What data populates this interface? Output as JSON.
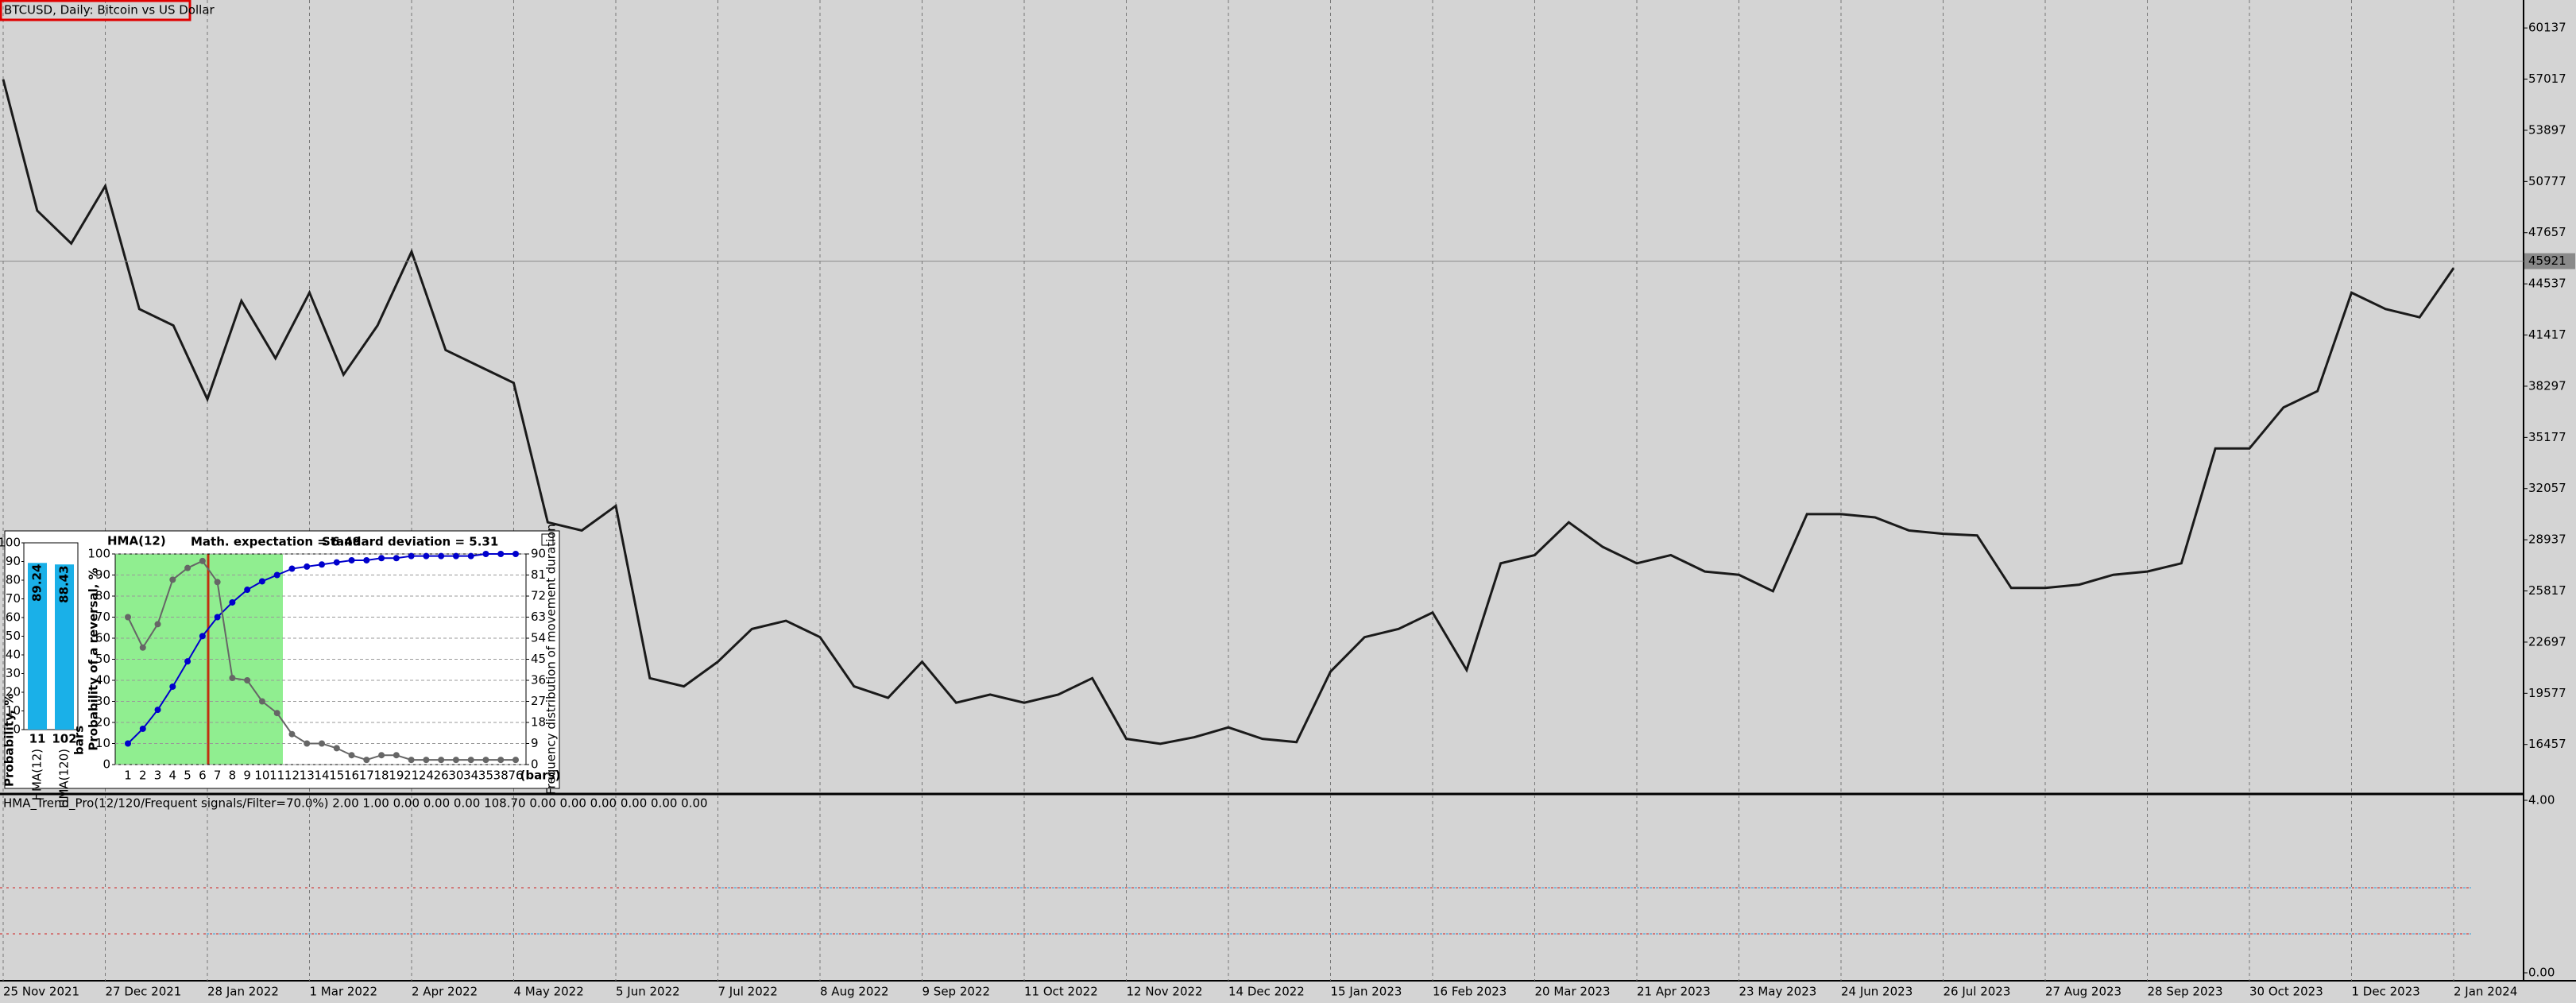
{
  "chart_data": [
    {
      "type": "line",
      "title": "BTCUSD, Daily:  Bitcoin vs US Dollar",
      "categories": [
        "25 Nov 2021",
        null,
        null,
        "27 Dec 2021",
        null,
        null,
        "28 Jan 2022",
        null,
        null,
        "1 Mar 2022",
        null,
        null,
        "2 Apr 2022",
        null,
        null,
        "4 May 2022",
        null,
        null,
        "5 Jun 2022",
        null,
        null,
        "7 Jul 2022",
        null,
        null,
        "8 Aug 2022",
        null,
        null,
        "9 Sep 2022",
        null,
        null,
        "11 Oct 2022",
        null,
        null,
        "12 Nov 2022",
        null,
        null,
        "14 Dec 2022",
        null,
        null,
        "15 Jan 2023",
        null,
        null,
        "16 Feb 2023",
        null,
        null,
        "20 Mar 2023",
        null,
        null,
        "21 Apr 2023",
        null,
        null,
        "23 May 2023",
        null,
        null,
        "24 Jun 2023",
        null,
        null,
        "26 Jul 2023",
        null,
        null,
        "27 Aug 2023",
        null,
        null,
        "28 Sep 2023",
        null,
        null,
        "30 Oct 2023",
        null,
        null,
        "1 Dec 2023",
        null,
        null,
        "2 Jan 2024"
      ],
      "values": [
        57000,
        49000,
        47000,
        50500,
        43000,
        42000,
        37500,
        43500,
        40000,
        44000,
        39000,
        42000,
        46500,
        40500,
        39500,
        38500,
        30000,
        29500,
        31000,
        20500,
        20000,
        21500,
        23500,
        24000,
        23000,
        20000,
        19300,
        21500,
        19000,
        19500,
        19000,
        19500,
        20500,
        16800,
        16500,
        16900,
        17500,
        16800,
        16600,
        20900,
        23000,
        23500,
        24500,
        21000,
        27500,
        28000,
        30000,
        28500,
        27500,
        28000,
        27000,
        26800,
        25800,
        30500,
        30500,
        30300,
        29500,
        29300,
        29200,
        26000,
        26000,
        26200,
        26800,
        27000,
        27500,
        34500,
        34500,
        37000,
        38000,
        44000,
        43000,
        42500,
        45500
      ],
      "color": "#1a1a1a",
      "last_price": 45921,
      "ylim": [
        13440,
        61840
      ],
      "yticks": [
        16457,
        19577,
        22697,
        25817,
        28937,
        32057,
        35177,
        38297,
        41417,
        44537,
        47657,
        50777,
        53897,
        57017,
        60137
      ],
      "grid": "vertical"
    },
    {
      "type": "line",
      "title": "HMA(12)",
      "subtitle": "Math. expectation = 6.49",
      "annotation": "Standard deviation = 5.31",
      "categories": [
        "1",
        "2",
        "3",
        "4",
        "5",
        "6",
        "7",
        "8",
        "9",
        "10",
        "11",
        "12",
        "13",
        "14",
        "15",
        "16",
        "17",
        "18",
        "19",
        "21",
        "24",
        "26",
        "30",
        "34",
        "35",
        "38",
        "76"
      ],
      "xlabel": "(bars)",
      "ylabel": "Probability of a reversal, %",
      "y2label": "Frequency distribution of movement duration",
      "series": [
        {
          "color": "#0000cc",
          "values": [
            10,
            17,
            26,
            37,
            49,
            61,
            70,
            77,
            83,
            87,
            90,
            93,
            94,
            95,
            96,
            97,
            97,
            98,
            98,
            99,
            99,
            99,
            99,
            99,
            100,
            100,
            100
          ]
        },
        {
          "color": "#666666",
          "axis": "y2",
          "values": [
            63,
            50,
            60,
            79,
            84,
            87,
            78,
            37,
            36,
            27,
            22,
            13,
            9,
            9,
            7,
            4,
            2,
            4,
            4,
            2,
            2,
            2,
            2,
            2,
            2,
            2,
            2
          ]
        }
      ],
      "ylim": [
        0,
        100
      ],
      "yticks": [
        0,
        10,
        20,
        30,
        40,
        50,
        60,
        70,
        80,
        90,
        100
      ],
      "y2lim": [
        0,
        90
      ],
      "y2ticks": [
        0,
        9,
        18,
        27,
        36,
        45,
        54,
        63,
        72,
        81,
        90
      ],
      "grid": "horizontal",
      "markers": true
    },
    {
      "type": "bar",
      "ylabel": "Probability, %",
      "xlabel": "bars",
      "categories": [
        "HMA(12)",
        "HMA(120)"
      ],
      "values": [
        89.24,
        88.43
      ],
      "counts": [
        11,
        102
      ],
      "color": "#1ab0e8",
      "ylim": [
        0,
        100
      ],
      "yticks": [
        0,
        10,
        20,
        30,
        40,
        50,
        60,
        70,
        80,
        90,
        100
      ]
    },
    {
      "type": "indicator",
      "title": "HMA_Trend_Pro(12/120/Frequent signals/Filter=70.0%) 2.00 1.00 0.00 0.00 0.00 108.70 0.00 0.00 0.00 0.00 0.00 0.00",
      "ylim": [
        0,
        4
      ],
      "yticks": [
        {
          "value": 0,
          "label": "0.00"
        },
        {
          "value": 4,
          "label": "4.00"
        }
      ]
    }
  ]
}
